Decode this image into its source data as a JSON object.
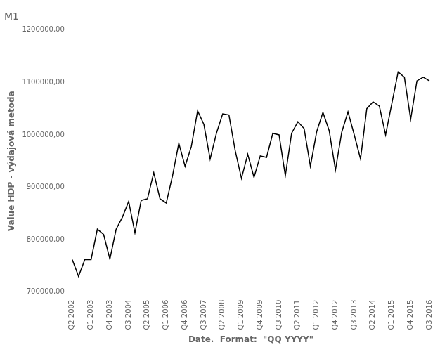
{
  "chart_data": {
    "type": "line",
    "title": "M1",
    "xlabel": "Date.  Format:  \"QQ YYYY\"",
    "ylabel": "Value HDP - výdajová metoda",
    "categories": [
      "Q2 2002",
      null,
      null,
      "Q1 2003",
      null,
      null,
      "Q4 2003",
      null,
      null,
      "Q3 2004",
      null,
      null,
      "Q2 2005",
      null,
      null,
      "Q1 2006",
      null,
      null,
      "Q4 2006",
      null,
      null,
      "Q3 2007",
      null,
      null,
      "Q2 2008",
      null,
      null,
      "Q1 2009",
      null,
      null,
      "Q4 2009",
      null,
      null,
      "Q3 2010",
      null,
      null,
      "Q2 2011",
      null,
      null,
      "Q1 2012",
      null,
      null,
      "Q4 2012",
      null,
      null,
      "Q3 2013",
      null,
      null,
      "Q2 2014",
      null,
      null,
      "Q1 2015",
      null,
      null,
      "Q4 2015",
      null,
      null,
      "Q3 2016"
    ],
    "values": [
      762000,
      730000,
      762000,
      762000,
      820000,
      810000,
      763000,
      820000,
      843000,
      873000,
      813000,
      875000,
      878000,
      928000,
      878000,
      870000,
      922000,
      984000,
      940000,
      978000,
      1046000,
      1020000,
      954000,
      1003000,
      1040000,
      1038000,
      970000,
      917000,
      963000,
      919000,
      960000,
      957000,
      1003000,
      1000000,
      922000,
      1003000,
      1025000,
      1012000,
      940000,
      1006000,
      1043000,
      1008000,
      933000,
      1005000,
      1044000,
      1000000,
      954000,
      1050000,
      1063000,
      1055000,
      1000000,
      1060000,
      1120000,
      1110000,
      1030000,
      1103000,
      1110000,
      1103000
    ],
    "color": "#000000",
    "ylim": [
      700000,
      1200000
    ],
    "yticks": [
      {
        "value": 700000,
        "label": "700000,00"
      },
      {
        "value": 800000,
        "label": "800000,00"
      },
      {
        "value": 900000,
        "label": "900000,00"
      },
      {
        "value": 1000000,
        "label": "1000000,00"
      },
      {
        "value": 1100000,
        "label": "1100000,00"
      },
      {
        "value": 1200000,
        "label": "1200000,00"
      }
    ],
    "grid": false
  }
}
